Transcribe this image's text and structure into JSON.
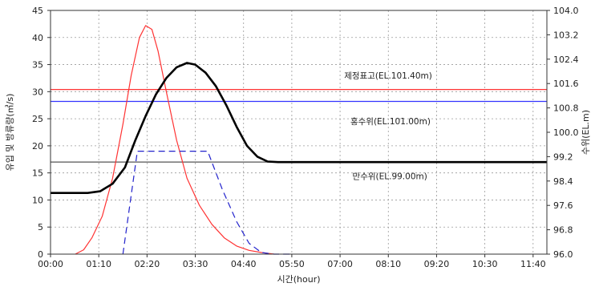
{
  "chart_data": {
    "type": "line",
    "xlabel": "시간(hour)",
    "ylabel_left": "유입 및 방류량(㎥/s)",
    "ylabel_right": "수위(EL.m)",
    "xlim": [
      0,
      12
    ],
    "x_ticks": [
      {
        "x": 0,
        "label": "00:00"
      },
      {
        "x": 1.1667,
        "label": "01:10"
      },
      {
        "x": 2.3333,
        "label": "02:20"
      },
      {
        "x": 3.5,
        "label": "03:30"
      },
      {
        "x": 4.6667,
        "label": "04:40"
      },
      {
        "x": 5.8333,
        "label": "05:50"
      },
      {
        "x": 7.0,
        "label": "07:00"
      },
      {
        "x": 8.1667,
        "label": "08:10"
      },
      {
        "x": 9.3333,
        "label": "09:20"
      },
      {
        "x": 10.5,
        "label": "10:30"
      },
      {
        "x": 11.6667,
        "label": "11:40"
      }
    ],
    "ylim_left": [
      0,
      45
    ],
    "y_left_ticks": [
      "0",
      "5",
      "10",
      "15",
      "20",
      "25",
      "30",
      "35",
      "40",
      "45"
    ],
    "ylim_right": [
      96.0,
      104.0
    ],
    "y_right_ticks": [
      "96.0",
      "96.8",
      "97.6",
      "98.4",
      "99.2",
      "100.0",
      "100.8",
      "101.6",
      "102.4",
      "103.2",
      "104.0"
    ],
    "grid": true,
    "series": [
      {
        "color": "#ff3333",
        "dash": "solid",
        "width": 1.2,
        "points": [
          [
            0.6,
            0
          ],
          [
            0.8,
            0.8
          ],
          [
            1.0,
            3
          ],
          [
            1.25,
            7
          ],
          [
            1.5,
            14
          ],
          [
            1.75,
            24
          ],
          [
            1.95,
            33
          ],
          [
            2.15,
            40
          ],
          [
            2.3,
            42.2
          ],
          [
            2.45,
            41.5
          ],
          [
            2.6,
            37.5
          ],
          [
            2.8,
            30
          ],
          [
            3.05,
            21
          ],
          [
            3.3,
            14
          ],
          [
            3.6,
            9
          ],
          [
            3.9,
            5.5
          ],
          [
            4.2,
            3
          ],
          [
            4.5,
            1.5
          ],
          [
            4.8,
            0.7
          ],
          [
            5.1,
            0.3
          ],
          [
            5.4,
            0
          ]
        ]
      },
      {
        "color": "#000000",
        "dash": "solid",
        "width": 2.6,
        "points": [
          [
            0,
            11.3
          ],
          [
            0.9,
            11.3
          ],
          [
            1.2,
            11.6
          ],
          [
            1.5,
            13
          ],
          [
            1.8,
            16
          ],
          [
            2.05,
            21
          ],
          [
            2.3,
            25.5
          ],
          [
            2.55,
            29.5
          ],
          [
            2.8,
            32.5
          ],
          [
            3.05,
            34.5
          ],
          [
            3.3,
            35.3
          ],
          [
            3.5,
            35
          ],
          [
            3.75,
            33.5
          ],
          [
            4.0,
            31
          ],
          [
            4.25,
            27.5
          ],
          [
            4.5,
            23.5
          ],
          [
            4.75,
            20
          ],
          [
            5.0,
            18
          ],
          [
            5.25,
            17.1
          ],
          [
            5.5,
            17
          ],
          [
            12,
            17
          ]
        ]
      },
      {
        "color": "#2222cc",
        "dash": "8,5",
        "width": 1.2,
        "points": [
          [
            1.75,
            0
          ],
          [
            2.1,
            19
          ],
          [
            3.8,
            19
          ],
          [
            4.15,
            12
          ],
          [
            4.5,
            6
          ],
          [
            4.8,
            2
          ],
          [
            5.1,
            0.3
          ],
          [
            5.4,
            0
          ],
          [
            5.8,
            0
          ]
        ]
      }
    ],
    "reference_lines": [
      {
        "y": 30.4,
        "color": "#ff3333",
        "label": "제정표고(EL.101.40m)",
        "label_x": 7.1,
        "label_y": 33.0
      },
      {
        "y": 28.2,
        "color": "#3333ff",
        "label": "홍수위(EL.101.00m)",
        "label_x": 7.25,
        "label_y": 24.6
      },
      {
        "y": 17.0,
        "color": "#555555",
        "label": "만수위(EL.99.00m)",
        "label_x": 7.3,
        "label_y": 14.4
      }
    ]
  }
}
